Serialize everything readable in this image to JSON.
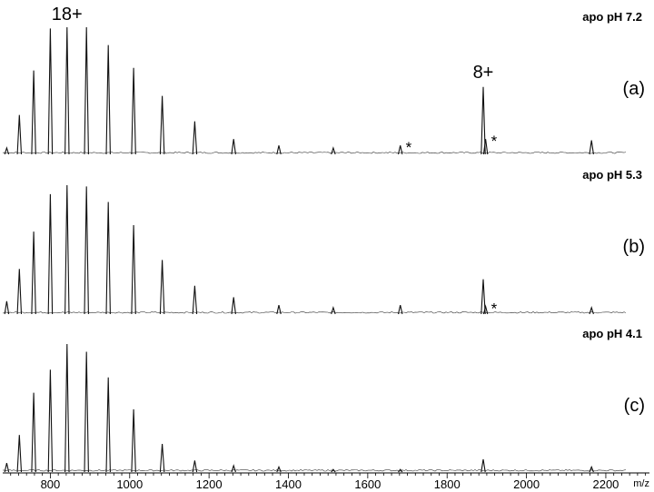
{
  "chart_data": {
    "type": "line",
    "xlabel": "m/z",
    "x_ticks": [
      800,
      1000,
      1200,
      1400,
      1600,
      1800,
      2000,
      2200
    ],
    "xlim": [
      680,
      2310
    ],
    "panels": [
      {
        "condition": "apo pH 7.2",
        "panel_label": "(a)",
        "peaks": [
          {
            "mz": 690,
            "intensity": 0.05
          },
          {
            "mz": 722,
            "intensity": 0.31
          },
          {
            "mz": 758,
            "intensity": 0.66
          },
          {
            "mz": 800,
            "intensity": 0.99
          },
          {
            "mz": 842,
            "intensity": 1.0
          },
          {
            "mz": 891,
            "intensity": 1.0
          },
          {
            "mz": 946,
            "intensity": 0.86
          },
          {
            "mz": 1010,
            "intensity": 0.68
          },
          {
            "mz": 1082,
            "intensity": 0.46
          },
          {
            "mz": 1164,
            "intensity": 0.26
          },
          {
            "mz": 1262,
            "intensity": 0.12
          },
          {
            "mz": 1376,
            "intensity": 0.07
          },
          {
            "mz": 1513,
            "intensity": 0.05
          },
          {
            "mz": 1682,
            "intensity": 0.07
          },
          {
            "mz": 1891,
            "intensity": 0.53
          },
          {
            "mz": 1897,
            "intensity": 0.12
          },
          {
            "mz": 2164,
            "intensity": 0.11
          }
        ],
        "annotations": [
          {
            "text": "18+",
            "mz": 842
          },
          {
            "text": "8+",
            "mz": 1891
          },
          {
            "text": "*",
            "mz": 1682
          },
          {
            "text": "*",
            "mz": 1897
          }
        ]
      },
      {
        "condition": "apo pH 5.3",
        "panel_label": "(b)",
        "peaks": [
          {
            "mz": 690,
            "intensity": 0.1
          },
          {
            "mz": 722,
            "intensity": 0.35
          },
          {
            "mz": 758,
            "intensity": 0.64
          },
          {
            "mz": 800,
            "intensity": 0.93
          },
          {
            "mz": 842,
            "intensity": 1.0
          },
          {
            "mz": 891,
            "intensity": 0.99
          },
          {
            "mz": 946,
            "intensity": 0.87
          },
          {
            "mz": 1010,
            "intensity": 0.69
          },
          {
            "mz": 1082,
            "intensity": 0.42
          },
          {
            "mz": 1164,
            "intensity": 0.22
          },
          {
            "mz": 1262,
            "intensity": 0.13
          },
          {
            "mz": 1376,
            "intensity": 0.07
          },
          {
            "mz": 1513,
            "intensity": 0.05
          },
          {
            "mz": 1682,
            "intensity": 0.07
          },
          {
            "mz": 1891,
            "intensity": 0.27
          },
          {
            "mz": 1897,
            "intensity": 0.06
          },
          {
            "mz": 2164,
            "intensity": 0.05
          }
        ],
        "annotations": [
          {
            "text": "*",
            "mz": 1897
          }
        ]
      },
      {
        "condition": "apo pH 4.1",
        "panel_label": "(c)",
        "peaks": [
          {
            "mz": 690,
            "intensity": 0.07
          },
          {
            "mz": 722,
            "intensity": 0.29
          },
          {
            "mz": 758,
            "intensity": 0.62
          },
          {
            "mz": 800,
            "intensity": 0.8
          },
          {
            "mz": 842,
            "intensity": 1.0
          },
          {
            "mz": 891,
            "intensity": 0.94
          },
          {
            "mz": 946,
            "intensity": 0.74
          },
          {
            "mz": 1010,
            "intensity": 0.49
          },
          {
            "mz": 1082,
            "intensity": 0.22
          },
          {
            "mz": 1164,
            "intensity": 0.09
          },
          {
            "mz": 1262,
            "intensity": 0.05
          },
          {
            "mz": 1376,
            "intensity": 0.04
          },
          {
            "mz": 1513,
            "intensity": 0.02
          },
          {
            "mz": 1682,
            "intensity": 0.02
          },
          {
            "mz": 1891,
            "intensity": 0.1
          },
          {
            "mz": 2164,
            "intensity": 0.04
          }
        ],
        "annotations": []
      }
    ]
  }
}
